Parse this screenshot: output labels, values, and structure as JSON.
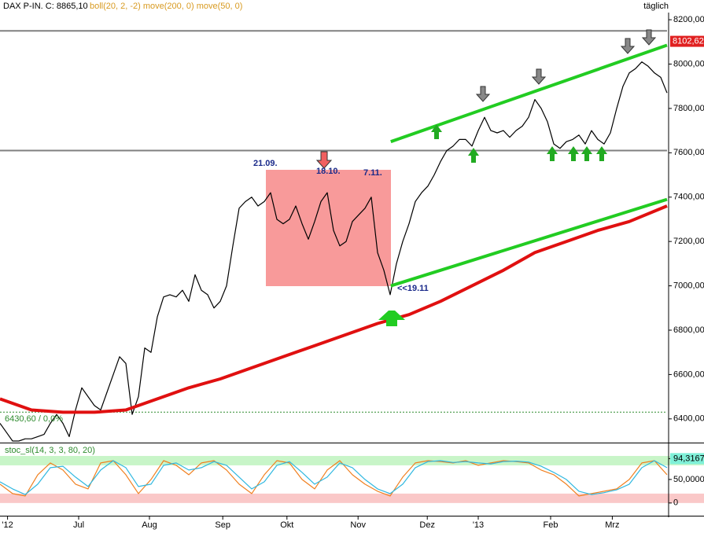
{
  "header": {
    "symbol": "DAX P-IN. C: 8865,10",
    "indicators": "boll(20, 2, -2) move(200, 0) move(50, 0)",
    "period": "täglich"
  },
  "annotations": [
    "21.09.",
    "18.10.",
    "7.11.",
    "<<19.11"
  ],
  "chart_data": [
    {
      "type": "line",
      "xlim": [
        0,
        106
      ],
      "ylim": [
        6293,
        8289
      ],
      "yticks": [
        {
          "value": 6400,
          "label": "6400,00"
        },
        {
          "value": 6600,
          "label": "6600,00"
        },
        {
          "value": 6800,
          "label": "6800,00"
        },
        {
          "value": 7000,
          "label": "7000,00"
        },
        {
          "value": 7200,
          "label": "7200,00"
        },
        {
          "value": 7400,
          "label": "7400,00"
        },
        {
          "value": 7600,
          "label": "7600,00"
        },
        {
          "value": 7800,
          "label": "7800,00"
        },
        {
          "value": 8000,
          "label": "8000,00"
        },
        {
          "value": 8200,
          "label": "8200,00"
        }
      ],
      "xticks": [
        {
          "value": 1.2,
          "label": "'12"
        },
        {
          "value": 12.5,
          "label": "Jul"
        },
        {
          "value": 23.75,
          "label": "Aug"
        },
        {
          "value": 35.4,
          "label": "Sep"
        },
        {
          "value": 45.6,
          "label": "Okt"
        },
        {
          "value": 56.9,
          "label": "Nov"
        },
        {
          "value": 67.9,
          "label": "Dez"
        },
        {
          "value": 76,
          "label": "'13"
        },
        {
          "value": 87.5,
          "label": "Feb"
        },
        {
          "value": 97.3,
          "label": "Mrz"
        }
      ],
      "hlines": [
        {
          "value": 8150,
          "color": "#808080"
        },
        {
          "value": 7610,
          "color": "#808080"
        }
      ],
      "reference": {
        "value": 6430.6,
        "label": "6430,60 / 0,0%",
        "color": "#2e8b2e"
      },
      "last_price": {
        "value": 8102.62,
        "label": "8102,62",
        "color": "#e02020"
      },
      "series": [
        {
          "color": "#000000",
          "width": 1.2,
          "values": [
            6380,
            6340,
            6300,
            6300,
            6310,
            6310,
            6320,
            6330,
            6380,
            6420,
            6380,
            6320,
            6440,
            6540,
            6500,
            6460,
            6440,
            6520,
            6600,
            6680,
            6650,
            6420,
            6500,
            6720,
            6700,
            6860,
            6950,
            6960,
            6950,
            6980,
            6930,
            7050,
            6980,
            6960,
            6900,
            6930,
            7000,
            7180,
            7350,
            7380,
            7400,
            7360,
            7380,
            7420,
            7300,
            7280,
            7300,
            7360,
            7280,
            7210,
            7290,
            7380,
            7420,
            7250,
            7180,
            7200,
            7290,
            7320,
            7350,
            7400,
            7150,
            7070,
            6960,
            7100,
            7200,
            7280,
            7380,
            7420,
            7450,
            7500,
            7560,
            7610,
            7630,
            7660,
            7660,
            7630,
            7700,
            7760,
            7700,
            7690,
            7700,
            7670,
            7700,
            7720,
            7760,
            7840,
            7800,
            7740,
            7640,
            7620,
            7650,
            7660,
            7680,
            7640,
            7700,
            7660,
            7640,
            7690,
            7800,
            7900,
            7960,
            7980,
            8010,
            7990,
            7960,
            7940,
            7870
          ]
        },
        {
          "color": "#e01010",
          "width": 4,
          "x": [
            0,
            5,
            10,
            15,
            20,
            25,
            30,
            35,
            40,
            45,
            50,
            55,
            60,
            65,
            70,
            75,
            80,
            85,
            90,
            95,
            100,
            106
          ],
          "values": [
            6490,
            6440,
            6430,
            6430,
            6440,
            6490,
            6540,
            6580,
            6630,
            6680,
            6730,
            6780,
            6830,
            6870,
            6930,
            7000,
            7070,
            7150,
            7200,
            7250,
            7290,
            7360
          ]
        },
        {
          "color": "#22cc22",
          "width": 4,
          "x": [
            62.1,
            106
          ],
          "values": [
            7650,
            8085
          ]
        },
        {
          "color": "#22cc22",
          "width": 4,
          "x": [
            62.1,
            106
          ],
          "values": [
            7000,
            7390
          ]
        }
      ]
    },
    {
      "type": "line",
      "title": "stoc_sl(14, 3, 3, 80, 20)",
      "xlim": [
        0,
        106
      ],
      "ylim": [
        -27,
        125
      ],
      "bands": [
        {
          "from": 80,
          "to": 100,
          "color": "#c8f5c8"
        },
        {
          "from": 0,
          "to": 20,
          "color": "#fac8c8"
        }
      ],
      "yticks": [
        {
          "value": 94.3167,
          "label": "94,3167"
        },
        {
          "value": 50,
          "label": "50,0000"
        },
        0
      ],
      "x": [
        0,
        2,
        4,
        6,
        8,
        10,
        12,
        14,
        16,
        18,
        20,
        22,
        24,
        26,
        28,
        30,
        32,
        34,
        36,
        38,
        40,
        42,
        44,
        46,
        48,
        50,
        52,
        54,
        56,
        58,
        60,
        62,
        64,
        66,
        68,
        70,
        72,
        74,
        76,
        78,
        80,
        82,
        84,
        86,
        88,
        90,
        92,
        94,
        96,
        98,
        100,
        102,
        104,
        106
      ],
      "series": [
        {
          "color": "#f08020",
          "values": [
            40,
            20,
            15,
            60,
            85,
            70,
            40,
            30,
            85,
            90,
            60,
            20,
            50,
            90,
            80,
            60,
            85,
            90,
            70,
            40,
            20,
            60,
            90,
            85,
            50,
            30,
            70,
            90,
            60,
            40,
            25,
            15,
            55,
            85,
            90,
            88,
            85,
            90,
            80,
            85,
            90,
            88,
            85,
            70,
            60,
            40,
            15,
            20,
            25,
            30,
            50,
            85,
            90,
            60
          ]
        },
        {
          "color": "#30b8e0",
          "values": [
            45,
            30,
            18,
            40,
            75,
            78,
            55,
            35,
            70,
            90,
            75,
            35,
            40,
            80,
            85,
            70,
            75,
            88,
            80,
            55,
            30,
            45,
            80,
            88,
            65,
            40,
            55,
            85,
            75,
            50,
            30,
            20,
            40,
            75,
            88,
            90,
            86,
            88,
            85,
            83,
            88,
            89,
            87,
            78,
            65,
            50,
            25,
            18,
            22,
            28,
            40,
            75,
            90,
            75
          ]
        }
      ]
    }
  ]
}
